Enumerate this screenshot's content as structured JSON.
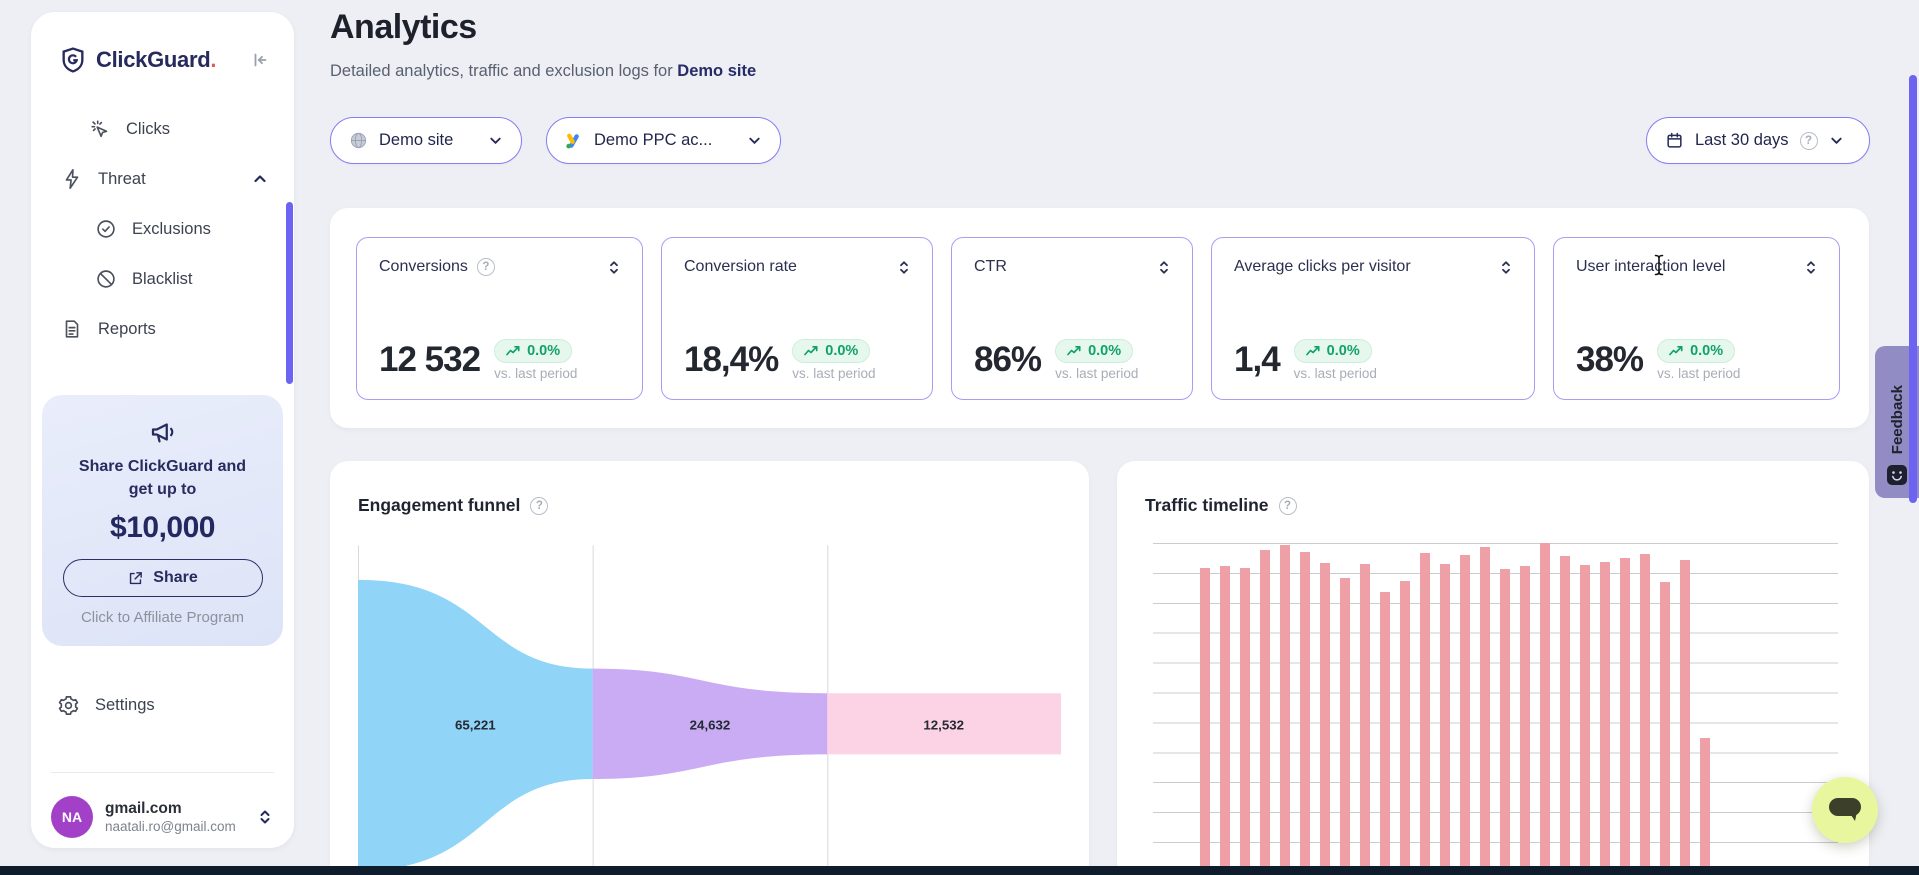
{
  "app": {
    "name": "ClickGuard",
    "logo_dot": "."
  },
  "colors": {
    "accent_indigo": "#6c63f1",
    "pill_border": "#887cf2",
    "positive_green": "#12a168",
    "navy_text": "#262a5c",
    "feedback_tab": "#928cc5",
    "chat_button": "#e8f79e",
    "avatar_purple": "#a241c8",
    "bottom_bar": "#0e1c2b"
  },
  "icons": {
    "logo": "shield-g-icon",
    "collapse": "collapse-sidebar-icon",
    "clicks": "click-cursor-icon",
    "threat": "lightning-icon",
    "exclusions": "check-badge-icon",
    "blacklist": "ban-icon",
    "reports": "document-icon",
    "promo": "megaphone-icon",
    "share": "external-link-icon",
    "settings": "gear-icon",
    "account": "selector-chevrons-icon",
    "site_filter": "globe-icon",
    "ppc_filter": "google-ads-icon",
    "date_filter": "calendar-icon",
    "help": "help-circle-icon",
    "delta": "trend-up-icon",
    "feedback": "smiley-chat-icon",
    "chat": "speech-bubble-icon"
  },
  "sidebar": {
    "menu": [
      {
        "label": "Clicks"
      },
      {
        "label": "Threat"
      },
      {
        "label": "Exclusions"
      },
      {
        "label": "Blacklist"
      },
      {
        "label": "Reports"
      }
    ],
    "promo": {
      "line1": "Share ClickGuard and",
      "line2": "get up to",
      "amount": "$10,000",
      "share_label": "Share",
      "caption": "Click to Affiliate Program"
    },
    "settings_label": "Settings",
    "account": {
      "initials": "NA",
      "name": "gmail.com",
      "email": "naatali.ro@gmail.com"
    }
  },
  "header": {
    "title": "Analytics",
    "subtitle_prefix": "Detailed analytics, traffic and exclusion logs for ",
    "subtitle_site": "Demo site"
  },
  "filters": {
    "site": "Demo site",
    "ppc_account": "Demo PPC ac...",
    "date_range": "Last 30 days",
    "help_glyph": "?"
  },
  "kpis": [
    {
      "label": "Conversions",
      "value": "12 532",
      "change": "0.0%",
      "compare": "vs. last period",
      "has_help": true
    },
    {
      "label": "Conversion rate",
      "value": "18,4%",
      "change": "0.0%",
      "compare": "vs. last period"
    },
    {
      "label": "CTR",
      "value": "86%",
      "change": "0.0%",
      "compare": "vs. last period"
    },
    {
      "label": "Average clicks per visitor",
      "value": "1,4",
      "change": "0.0%",
      "compare": "vs. last period"
    },
    {
      "label": "User interaction level",
      "value": "38%",
      "change": "0.0%",
      "compare": "vs. last period"
    }
  ],
  "chart_data": [
    {
      "type": "funnel",
      "title": "Engagement funnel",
      "stages": [
        {
          "label": "65,221",
          "value": 65221,
          "color": "#90d5f8"
        },
        {
          "label": "24,632",
          "value": 24632,
          "color": "#c9acf4"
        },
        {
          "label": "12,532",
          "value": 12532,
          "color": "#fcd3e5"
        }
      ],
      "grid": true
    },
    {
      "type": "bar",
      "title": "Traffic timeline",
      "bar_color": "#ef9fa6",
      "grid": true,
      "ylim": [
        0,
        100
      ],
      "values_pct": [
        1.5,
        92.4,
        93,
        92.4,
        97.9,
        99.4,
        97.3,
        93.9,
        89.4,
        93.6,
        85.1,
        88.4,
        97,
        93.6,
        96.4,
        98.8,
        92.1,
        93,
        100,
        96,
        93.3,
        94.2,
        95.4,
        96.7,
        88.1,
        94.8,
        41
      ]
    }
  ],
  "feedback_label": "Feedback"
}
